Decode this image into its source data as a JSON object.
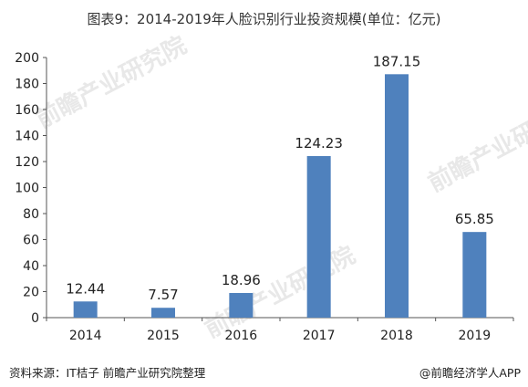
{
  "title": "图表9：2014-2019年人脸识别行业投资规模(单位：亿元)",
  "watermark": "前瞻产业研究院",
  "source": "资料来源：IT桔子 前瞻产业研究院整理",
  "brand": "@前瞻经济学人APP",
  "colors": {
    "bar": "#4f81bd",
    "axis": "#555555",
    "text": "#222222"
  },
  "chart_data": {
    "type": "bar",
    "title": "图表9：2014-2019年人脸识别行业投资规模(单位：亿元)",
    "xlabel": "",
    "ylabel": "",
    "categories": [
      "2014",
      "2015",
      "2016",
      "2017",
      "2018",
      "2019"
    ],
    "values": [
      12.44,
      7.57,
      18.96,
      124.23,
      187.15,
      65.85
    ],
    "value_labels": [
      "12.44",
      "7.57",
      "18.96",
      "124.23",
      "187.15",
      "65.85"
    ],
    "ylim": [
      0,
      200
    ],
    "yticks": [
      "0",
      "20",
      "40",
      "60",
      "80",
      "100",
      "120",
      "140",
      "160",
      "180",
      "200"
    ],
    "grid": false,
    "legend": "none"
  }
}
